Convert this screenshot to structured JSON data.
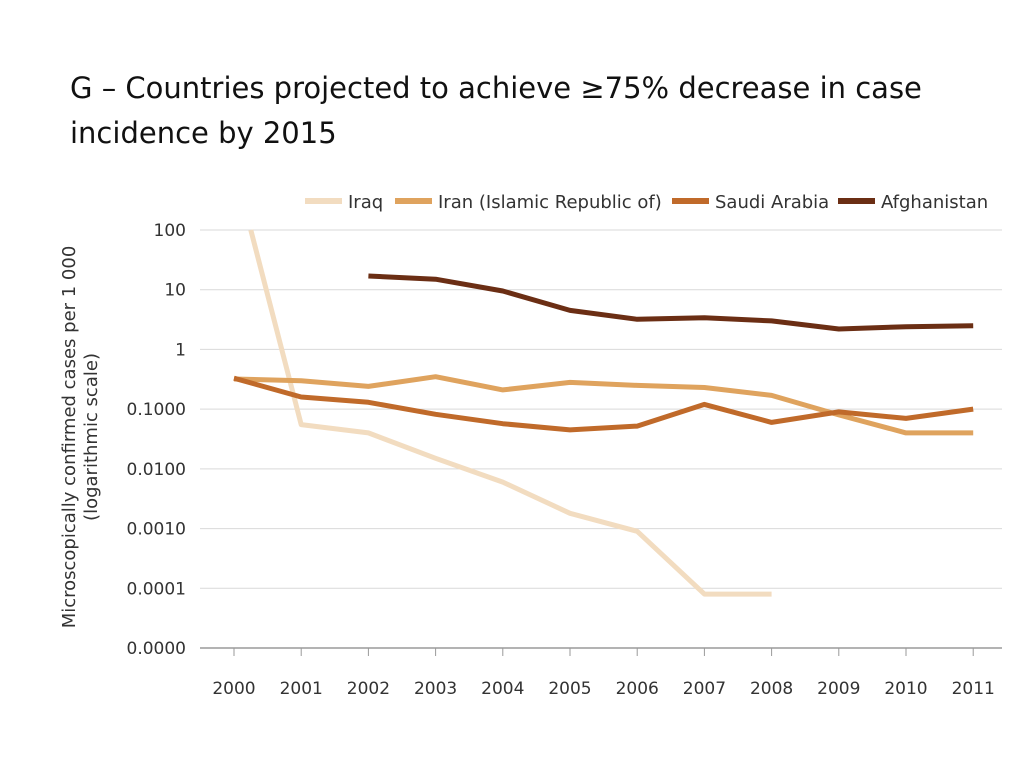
{
  "chart_data": {
    "type": "line",
    "title": "G – Countries projected to achieve ≥75% decrease in case incidence by 2015",
    "xlabel": "",
    "ylabel": "Microscopically confirmed cases per 1 000",
    "ylabel_sub": "(logarithmic scale)",
    "y_scale": "log",
    "ylim": [
      1e-05,
      100
    ],
    "y_ticks": [
      {
        "value": 100,
        "label": "100"
      },
      {
        "value": 10,
        "label": "10"
      },
      {
        "value": 1,
        "label": "1"
      },
      {
        "value": 0.1,
        "label": "0.1000"
      },
      {
        "value": 0.01,
        "label": "0.0100"
      },
      {
        "value": 0.001,
        "label": "0.0010"
      },
      {
        "value": 0.0001,
        "label": "0.0001"
      },
      {
        "value": 1e-05,
        "label": "0.0000"
      }
    ],
    "x": [
      "2000",
      "2001",
      "2002",
      "2003",
      "2004",
      "2005",
      "2006",
      "2007",
      "2008",
      "2009",
      "2010",
      "2011"
    ],
    "grid": true,
    "legend_position": "top",
    "series": [
      {
        "name": "Iraq",
        "color": "#f2dcc0",
        "points": [
          [
            2000.25,
            100
          ],
          [
            2001,
            0.055
          ],
          [
            2002,
            0.04
          ],
          [
            2003,
            0.015
          ],
          [
            2004,
            0.006
          ],
          [
            2005,
            0.0018
          ],
          [
            2006,
            0.0009
          ],
          [
            2007,
            8e-05
          ],
          [
            2008,
            8e-05
          ]
        ]
      },
      {
        "name": "Iran (Islamic Republic of)",
        "color": "#dfa35e",
        "points": [
          [
            2000,
            0.32
          ],
          [
            2001,
            0.3
          ],
          [
            2002,
            0.24
          ],
          [
            2003,
            0.35
          ],
          [
            2004,
            0.21
          ],
          [
            2005,
            0.28
          ],
          [
            2006,
            0.25
          ],
          [
            2007,
            0.23
          ],
          [
            2008,
            0.17
          ],
          [
            2009,
            0.08
          ],
          [
            2010,
            0.04
          ],
          [
            2011,
            0.04
          ]
        ]
      },
      {
        "name": "Saudi Arabia",
        "color": "#c06a2a",
        "points": [
          [
            2000,
            0.33
          ],
          [
            2001,
            0.16
          ],
          [
            2002,
            0.13
          ],
          [
            2003,
            0.082
          ],
          [
            2004,
            0.057
          ],
          [
            2005,
            0.045
          ],
          [
            2006,
            0.052
          ],
          [
            2007,
            0.12
          ],
          [
            2008,
            0.06
          ],
          [
            2009,
            0.09
          ],
          [
            2010,
            0.07
          ],
          [
            2011,
            0.1
          ]
        ]
      },
      {
        "name": "Afghanistan",
        "color": "#6b2e14",
        "points": [
          [
            2002,
            17
          ],
          [
            2003,
            15
          ],
          [
            2004,
            9.5
          ],
          [
            2005,
            4.5
          ],
          [
            2006,
            3.2
          ],
          [
            2007,
            3.4
          ],
          [
            2008,
            3.0
          ],
          [
            2009,
            2.2
          ],
          [
            2010,
            2.4
          ],
          [
            2011,
            2.5
          ]
        ]
      }
    ]
  }
}
